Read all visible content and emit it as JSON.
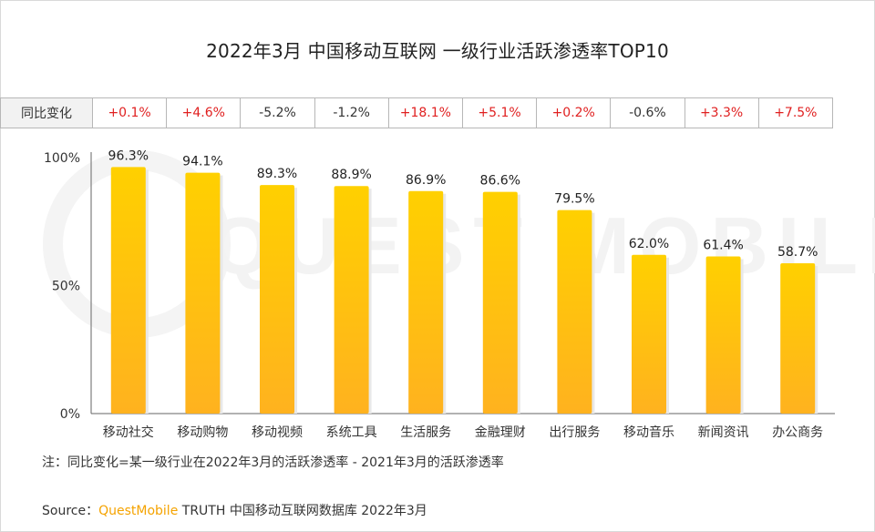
{
  "title": "2022年3月 中国移动互联网 一级行业活跃渗透率TOP10",
  "change_row": {
    "header": "同比变化",
    "values": [
      "+0.1%",
      "+4.6%",
      "-5.2%",
      "-1.2%",
      "+18.1%",
      "+5.1%",
      "+0.2%",
      "-0.6%",
      "+3.3%",
      "+7.5%"
    ]
  },
  "colors": {
    "bar_top": "#ffd000",
    "bar_bottom": "#ffb21f",
    "positive": "#e02020",
    "brand": "#f5a300"
  },
  "chart_data": {
    "type": "bar",
    "categories": [
      "移动社交",
      "移动购物",
      "移动视频",
      "系统工具",
      "生活服务",
      "金融理财",
      "出行服务",
      "移动音乐",
      "新闻资讯",
      "办公商务"
    ],
    "values": [
      96.3,
      94.1,
      89.3,
      88.9,
      86.9,
      86.6,
      79.5,
      62.0,
      61.4,
      58.7
    ],
    "data_labels": [
      "96.3%",
      "94.1%",
      "89.3%",
      "88.9%",
      "86.9%",
      "86.6%",
      "79.5%",
      "62.0%",
      "61.4%",
      "58.7%"
    ],
    "yticks": [
      0,
      50,
      100
    ],
    "ytick_labels": [
      "0%",
      "50%",
      "100%"
    ],
    "ylim": [
      0,
      100
    ],
    "grid": false
  },
  "note": "注：同比变化=某一级行业在2022年3月的活跃渗透率 - 2021年3月的活跃渗透率",
  "source": {
    "prefix": "Source：",
    "brand": "QuestMobile",
    "rest": " TRUTH 中国移动互联网数据库 2022年3月"
  },
  "watermark": "QUEST MOBILE"
}
